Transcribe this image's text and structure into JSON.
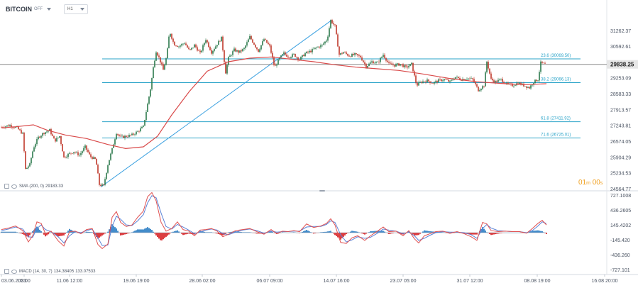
{
  "header": {
    "symbol": "BITCOIN",
    "symbol_sub": "OFF",
    "timeframe": "H1"
  },
  "indicators": {
    "sma_label": "SMA (200, 0)",
    "sma_value": "29183.33",
    "macd_label": "MACD (14, 30, 7)",
    "macd_value1": "134.38405",
    "macd_value2": "133.07533"
  },
  "timer": {
    "minutes": "01",
    "m_unit": "m",
    "seconds": "00",
    "s_unit": "s"
  },
  "colors": {
    "up_candle": "#2c7a4c",
    "down_candle": "#c0392b",
    "sma": "#d94a4a",
    "fib": "#29a3c8",
    "trendline": "#3aa0e0",
    "macd_line": "#e05050",
    "signal_line": "#5b82d6",
    "hist_pos": "#2f7fc4",
    "hist_neg": "#d8282c",
    "price_line": "#8c8c8c",
    "price_tag_bg": "#e6e6e6"
  },
  "chart_data": {
    "type": "candlestick",
    "main_panel": {
      "yaxis_labels": [
        "31262.37",
        "30592.61",
        "29253.09",
        "28583.33",
        "27913.57",
        "27243.81",
        "26574.05",
        "25904.29",
        "25234.53",
        "24564.77"
      ],
      "ylim": [
        24520,
        31900
      ],
      "current_price": 29838.25,
      "current_price_label": "29838.25",
      "fib_levels": [
        {
          "price": 30069.5,
          "label": "23.6 (30069.50)"
        },
        {
          "price": 29066.13,
          "label": "38.2 (29066.13)"
        },
        {
          "price": 27411.92,
          "label": "61.8 (27411.92)"
        },
        {
          "price": 26725.01,
          "label": "71.6 (26725.01)"
        }
      ],
      "trendline": {
        "from": {
          "index": 140,
          "price": 24650
        },
        "to": {
          "index": 465,
          "price": 31700
        }
      },
      "sma_points": [
        [
          0,
          27150
        ],
        [
          20,
          27200
        ],
        [
          45,
          27280
        ],
        [
          65,
          27050
        ],
        [
          90,
          26850
        ],
        [
          120,
          26700
        ],
        [
          150,
          26450
        ],
        [
          175,
          26280
        ],
        [
          200,
          26350
        ],
        [
          220,
          26800
        ],
        [
          240,
          27700
        ],
        [
          265,
          28700
        ],
        [
          290,
          29550
        ],
        [
          320,
          29950
        ],
        [
          350,
          30100
        ],
        [
          380,
          30150
        ],
        [
          410,
          30050
        ],
        [
          440,
          29950
        ],
        [
          470,
          29820
        ],
        [
          500,
          29720
        ],
        [
          530,
          29650
        ],
        [
          560,
          29580
        ],
        [
          590,
          29450
        ],
        [
          630,
          29250
        ],
        [
          670,
          29100
        ],
        [
          710,
          29020
        ],
        [
          740,
          28980
        ],
        [
          768,
          29020
        ]
      ],
      "close_path": [
        [
          2,
          27200
        ],
        [
          12,
          27260
        ],
        [
          22,
          27150
        ],
        [
          30,
          26900
        ],
        [
          34,
          25400
        ],
        [
          40,
          25600
        ],
        [
          45,
          26300
        ],
        [
          52,
          26750
        ],
        [
          60,
          26950
        ],
        [
          68,
          27050
        ],
        [
          75,
          26600
        ],
        [
          82,
          26800
        ],
        [
          88,
          25900
        ],
        [
          95,
          26050
        ],
        [
          102,
          26150
        ],
        [
          110,
          26000
        ],
        [
          118,
          26350
        ],
        [
          125,
          25950
        ],
        [
          133,
          25800
        ],
        [
          138,
          24750
        ],
        [
          144,
          24700
        ],
        [
          150,
          25600
        ],
        [
          156,
          26250
        ],
        [
          162,
          26950
        ],
        [
          168,
          26750
        ],
        [
          176,
          26800
        ],
        [
          184,
          26850
        ],
        [
          192,
          27000
        ],
        [
          200,
          27200
        ],
        [
          205,
          28000
        ],
        [
          210,
          28800
        ],
        [
          214,
          29700
        ],
        [
          218,
          30400
        ],
        [
          223,
          30050
        ],
        [
          228,
          29600
        ],
        [
          233,
          30200
        ],
        [
          237,
          31250
        ],
        [
          243,
          30700
        ],
        [
          250,
          30600
        ],
        [
          258,
          30750
        ],
        [
          265,
          30400
        ],
        [
          272,
          30650
        ],
        [
          280,
          30300
        ],
        [
          288,
          30900
        ],
        [
          296,
          30350
        ],
        [
          304,
          30700
        ],
        [
          310,
          30950
        ],
        [
          316,
          29500
        ],
        [
          320,
          30100
        ],
        [
          328,
          30450
        ],
        [
          335,
          30350
        ],
        [
          342,
          30500
        ],
        [
          350,
          31000
        ],
        [
          356,
          30700
        ],
        [
          362,
          30400
        ],
        [
          370,
          30900
        ],
        [
          378,
          30600
        ],
        [
          385,
          29700
        ],
        [
          392,
          30100
        ],
        [
          398,
          30300
        ],
        [
          405,
          30150
        ],
        [
          412,
          30250
        ],
        [
          420,
          30050
        ],
        [
          428,
          30300
        ],
        [
          436,
          30400
        ],
        [
          444,
          30550
        ],
        [
          452,
          30650
        ],
        [
          459,
          30900
        ],
        [
          464,
          31700
        ],
        [
          470,
          31450
        ],
        [
          476,
          30250
        ],
        [
          482,
          30350
        ],
        [
          490,
          30200
        ],
        [
          498,
          30250
        ],
        [
          506,
          30150
        ],
        [
          514,
          29750
        ],
        [
          522,
          29950
        ],
        [
          530,
          29900
        ],
        [
          538,
          30250
        ],
        [
          546,
          29850
        ],
        [
          554,
          29800
        ],
        [
          562,
          29850
        ],
        [
          570,
          29700
        ],
        [
          578,
          29850
        ],
        [
          585,
          28950
        ],
        [
          592,
          29100
        ],
        [
          600,
          29150
        ],
        [
          608,
          29050
        ],
        [
          616,
          29150
        ],
        [
          624,
          29200
        ],
        [
          632,
          29100
        ],
        [
          640,
          29300
        ],
        [
          648,
          29200
        ],
        [
          656,
          29250
        ],
        [
          664,
          29200
        ],
        [
          672,
          28750
        ],
        [
          680,
          28950
        ],
        [
          684,
          29950
        ],
        [
          690,
          29200
        ],
        [
          696,
          29100
        ],
        [
          704,
          29200
        ],
        [
          712,
          29000
        ],
        [
          720,
          28950
        ],
        [
          728,
          29050
        ],
        [
          736,
          28950
        ],
        [
          744,
          28850
        ],
        [
          750,
          29100
        ],
        [
          756,
          29200
        ],
        [
          760,
          29900
        ],
        [
          766,
          29838
        ]
      ]
    },
    "macd_panel": {
      "yaxis_labels": [
        "727.1008",
        "436.2605",
        "145.4202",
        "-145.420",
        "-436.260",
        "-727.101"
      ],
      "ylim": [
        -800,
        800
      ],
      "macd_points": [
        [
          0,
          60
        ],
        [
          10,
          90
        ],
        [
          20,
          130
        ],
        [
          30,
          40
        ],
        [
          38,
          -180
        ],
        [
          44,
          -60
        ],
        [
          50,
          210
        ],
        [
          56,
          180
        ],
        [
          62,
          -20
        ],
        [
          70,
          30
        ],
        [
          80,
          -160
        ],
        [
          88,
          -260
        ],
        [
          96,
          20
        ],
        [
          104,
          30
        ],
        [
          112,
          -20
        ],
        [
          120,
          60
        ],
        [
          128,
          80
        ],
        [
          136,
          -230
        ],
        [
          142,
          -310
        ],
        [
          150,
          -220
        ],
        [
          156,
          300
        ],
        [
          162,
          410
        ],
        [
          168,
          200
        ],
        [
          176,
          120
        ],
        [
          184,
          150
        ],
        [
          192,
          300
        ],
        [
          200,
          420
        ],
        [
          206,
          700
        ],
        [
          212,
          780
        ],
        [
          218,
          620
        ],
        [
          225,
          200
        ],
        [
          232,
          30
        ],
        [
          240,
          80
        ],
        [
          248,
          210
        ],
        [
          256,
          60
        ],
        [
          264,
          30
        ],
        [
          272,
          -60
        ],
        [
          280,
          50
        ],
        [
          288,
          60
        ],
        [
          296,
          80
        ],
        [
          304,
          30
        ],
        [
          312,
          -80
        ],
        [
          320,
          -30
        ],
        [
          330,
          40
        ],
        [
          340,
          60
        ],
        [
          350,
          80
        ],
        [
          360,
          20
        ],
        [
          370,
          -30
        ],
        [
          380,
          60
        ],
        [
          388,
          -20
        ],
        [
          396,
          30
        ],
        [
          404,
          20
        ],
        [
          412,
          40
        ],
        [
          420,
          20
        ],
        [
          430,
          170
        ],
        [
          440,
          100
        ],
        [
          450,
          130
        ],
        [
          458,
          180
        ],
        [
          464,
          270
        ],
        [
          470,
          150
        ],
        [
          478,
          -190
        ],
        [
          486,
          -210
        ],
        [
          494,
          -100
        ],
        [
          502,
          -60
        ],
        [
          512,
          -150
        ],
        [
          520,
          -60
        ],
        [
          530,
          30
        ],
        [
          538,
          110
        ],
        [
          546,
          20
        ],
        [
          556,
          30
        ],
        [
          566,
          -60
        ],
        [
          574,
          40
        ],
        [
          582,
          -120
        ],
        [
          588,
          -200
        ],
        [
          596,
          -60
        ],
        [
          604,
          -20
        ],
        [
          612,
          20
        ],
        [
          622,
          30
        ],
        [
          632,
          -10
        ],
        [
          642,
          20
        ],
        [
          652,
          -20
        ],
        [
          662,
          -80
        ],
        [
          670,
          -150
        ],
        [
          678,
          200
        ],
        [
          684,
          170
        ],
        [
          690,
          40
        ],
        [
          700,
          20
        ],
        [
          710,
          30
        ],
        [
          720,
          20
        ],
        [
          730,
          20
        ],
        [
          740,
          -10
        ],
        [
          748,
          80
        ],
        [
          756,
          180
        ],
        [
          762,
          240
        ],
        [
          768,
          150
        ]
      ],
      "signal_points": [
        [
          0,
          40
        ],
        [
          10,
          70
        ],
        [
          20,
          110
        ],
        [
          30,
          70
        ],
        [
          38,
          -80
        ],
        [
          44,
          -90
        ],
        [
          50,
          80
        ],
        [
          56,
          150
        ],
        [
          62,
          60
        ],
        [
          70,
          20
        ],
        [
          80,
          -80
        ],
        [
          88,
          -200
        ],
        [
          96,
          -60
        ],
        [
          104,
          20
        ],
        [
          112,
          0
        ],
        [
          120,
          40
        ],
        [
          128,
          70
        ],
        [
          136,
          -100
        ],
        [
          142,
          -250
        ],
        [
          150,
          -240
        ],
        [
          156,
          120
        ],
        [
          162,
          320
        ],
        [
          168,
          260
        ],
        [
          176,
          150
        ],
        [
          184,
          140
        ],
        [
          192,
          230
        ],
        [
          200,
          350
        ],
        [
          206,
          580
        ],
        [
          212,
          720
        ],
        [
          218,
          680
        ],
        [
          225,
          380
        ],
        [
          232,
          120
        ],
        [
          240,
          70
        ],
        [
          248,
          160
        ],
        [
          256,
          110
        ],
        [
          264,
          50
        ],
        [
          272,
          -20
        ],
        [
          280,
          10
        ],
        [
          288,
          50
        ],
        [
          296,
          70
        ],
        [
          304,
          50
        ],
        [
          312,
          -20
        ],
        [
          320,
          -40
        ],
        [
          330,
          10
        ],
        [
          340,
          50
        ],
        [
          350,
          70
        ],
        [
          360,
          40
        ],
        [
          370,
          -10
        ],
        [
          380,
          30
        ],
        [
          388,
          10
        ],
        [
          396,
          20
        ],
        [
          404,
          20
        ],
        [
          412,
          30
        ],
        [
          420,
          30
        ],
        [
          430,
          110
        ],
        [
          440,
          120
        ],
        [
          450,
          120
        ],
        [
          458,
          160
        ],
        [
          464,
          230
        ],
        [
          470,
          200
        ],
        [
          478,
          -40
        ],
        [
          486,
          -180
        ],
        [
          494,
          -140
        ],
        [
          502,
          -80
        ],
        [
          512,
          -110
        ],
        [
          520,
          -90
        ],
        [
          530,
          -10
        ],
        [
          538,
          70
        ],
        [
          546,
          50
        ],
        [
          556,
          30
        ],
        [
          566,
          -20
        ],
        [
          574,
          10
        ],
        [
          582,
          -60
        ],
        [
          588,
          -150
        ],
        [
          596,
          -110
        ],
        [
          604,
          -50
        ],
        [
          612,
          0
        ],
        [
          622,
          20
        ],
        [
          632,
          10
        ],
        [
          642,
          10
        ],
        [
          652,
          0
        ],
        [
          662,
          -40
        ],
        [
          670,
          -110
        ],
        [
          678,
          80
        ],
        [
          684,
          160
        ],
        [
          690,
          90
        ],
        [
          700,
          40
        ],
        [
          710,
          30
        ],
        [
          720,
          20
        ],
        [
          730,
          20
        ],
        [
          740,
          0
        ],
        [
          748,
          40
        ],
        [
          756,
          130
        ],
        [
          762,
          210
        ],
        [
          768,
          180
        ]
      ]
    },
    "xaxis_labels": [
      {
        "index": 0,
        "label": "03.06.2023"
      },
      {
        "index": 32,
        "label": "05:00"
      },
      {
        "index": 96,
        "label": "11.06 12:00"
      },
      {
        "index": 190,
        "label": "19.06 19:00"
      },
      {
        "index": 283,
        "label": "28.06 02:00"
      },
      {
        "index": 378,
        "label": "06.07 09:00"
      },
      {
        "index": 472,
        "label": "14.07 16:00"
      },
      {
        "index": 566,
        "label": "23.07 05:00"
      },
      {
        "index": 660,
        "label": "31.07 12:00"
      },
      {
        "index": 755,
        "label": "08.08 19:00"
      },
      {
        "index": 850,
        "label": "16.08 20:00"
      }
    ]
  }
}
